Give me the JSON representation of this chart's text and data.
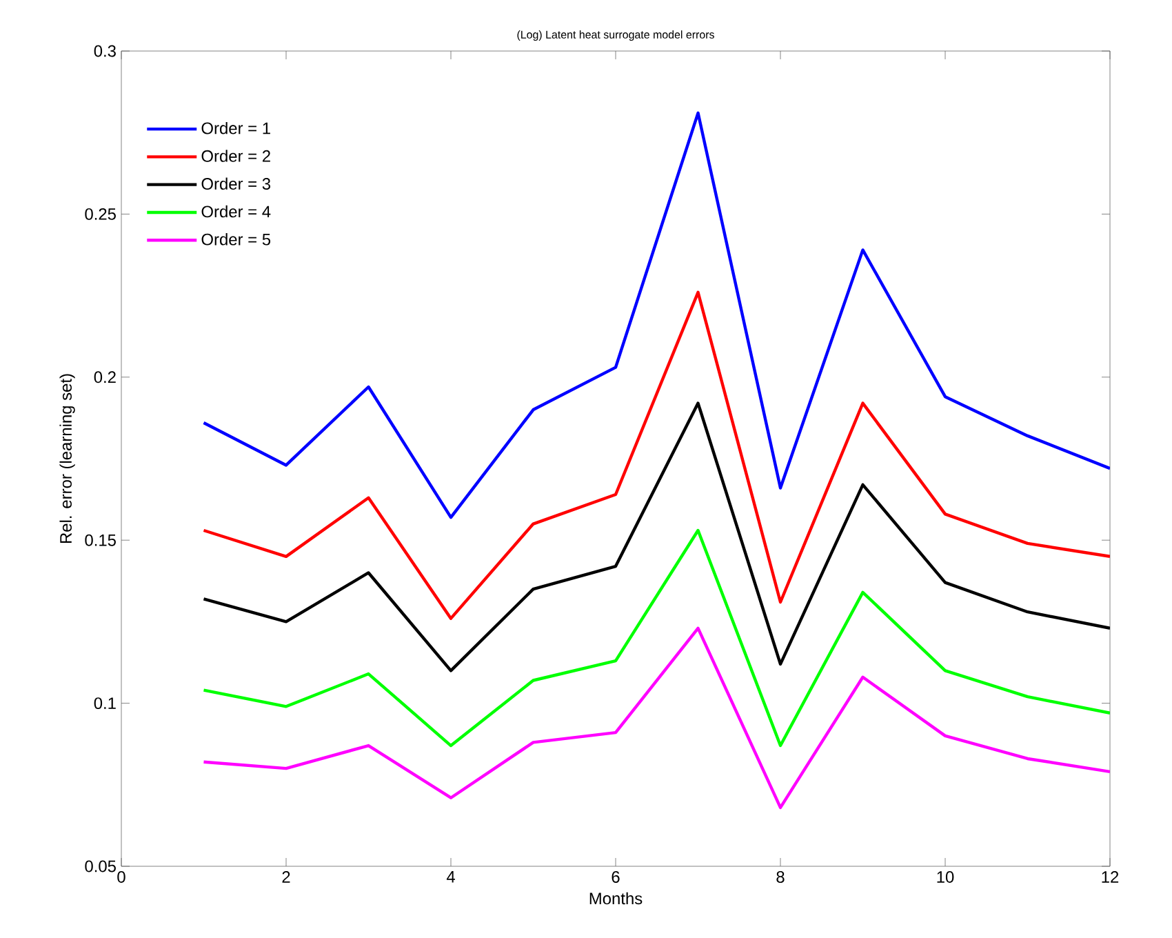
{
  "chart_data": {
    "type": "line",
    "title": "(Log) Latent heat surrogate model errors",
    "xlabel": "Months",
    "ylabel": "Rel. error (learning set)",
    "x": [
      1,
      2,
      3,
      4,
      5,
      6,
      7,
      8,
      9,
      10,
      11,
      12
    ],
    "series": [
      {
        "name": "Order = 1",
        "color": "#0000ff",
        "values": [
          0.186,
          0.173,
          0.197,
          0.157,
          0.19,
          0.203,
          0.281,
          0.166,
          0.239,
          0.194,
          0.182,
          0.172
        ]
      },
      {
        "name": "Order = 2",
        "color": "#ff0000",
        "values": [
          0.153,
          0.145,
          0.163,
          0.126,
          0.155,
          0.164,
          0.226,
          0.131,
          0.192,
          0.158,
          0.149,
          0.145
        ]
      },
      {
        "name": "Order = 3",
        "color": "#000000",
        "values": [
          0.132,
          0.125,
          0.14,
          0.11,
          0.135,
          0.142,
          0.192,
          0.112,
          0.167,
          0.137,
          0.128,
          0.123
        ]
      },
      {
        "name": "Order = 4",
        "color": "#00ff00",
        "values": [
          0.104,
          0.099,
          0.109,
          0.087,
          0.107,
          0.113,
          0.153,
          0.087,
          0.134,
          0.11,
          0.102,
          0.097
        ]
      },
      {
        "name": "Order = 5",
        "color": "#ff00ff",
        "values": [
          0.082,
          0.08,
          0.087,
          0.071,
          0.088,
          0.091,
          0.123,
          0.068,
          0.108,
          0.09,
          0.083,
          0.079
        ]
      }
    ],
    "xlim": [
      0,
      12
    ],
    "ylim": [
      0.05,
      0.3
    ],
    "xticks": [
      0,
      2,
      4,
      6,
      8,
      10,
      12
    ],
    "yticks": [
      0.05,
      0.1,
      0.15,
      0.2,
      0.25,
      0.3
    ],
    "legend": "top left",
    "line_style": "solid",
    "marker": "none"
  }
}
